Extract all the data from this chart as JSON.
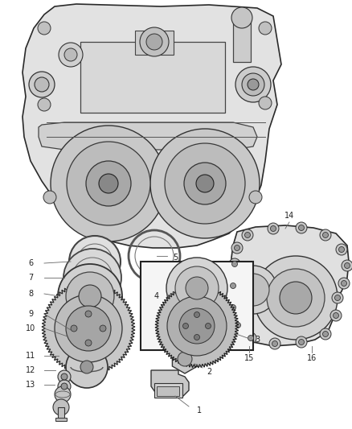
{
  "bg_color": "#ffffff",
  "fig_w": 4.38,
  "fig_h": 5.33,
  "dpi": 100,
  "label_fontsize": 7.0,
  "label_color": "#222222",
  "leader_color": "#666666",
  "part_color_light": "#d4d4d4",
  "part_color_mid": "#b8b8b8",
  "part_color_dark": "#888888",
  "part_edge": "#333333",
  "gear_color": "#aaaaaa",
  "gear_edge": "#222222"
}
